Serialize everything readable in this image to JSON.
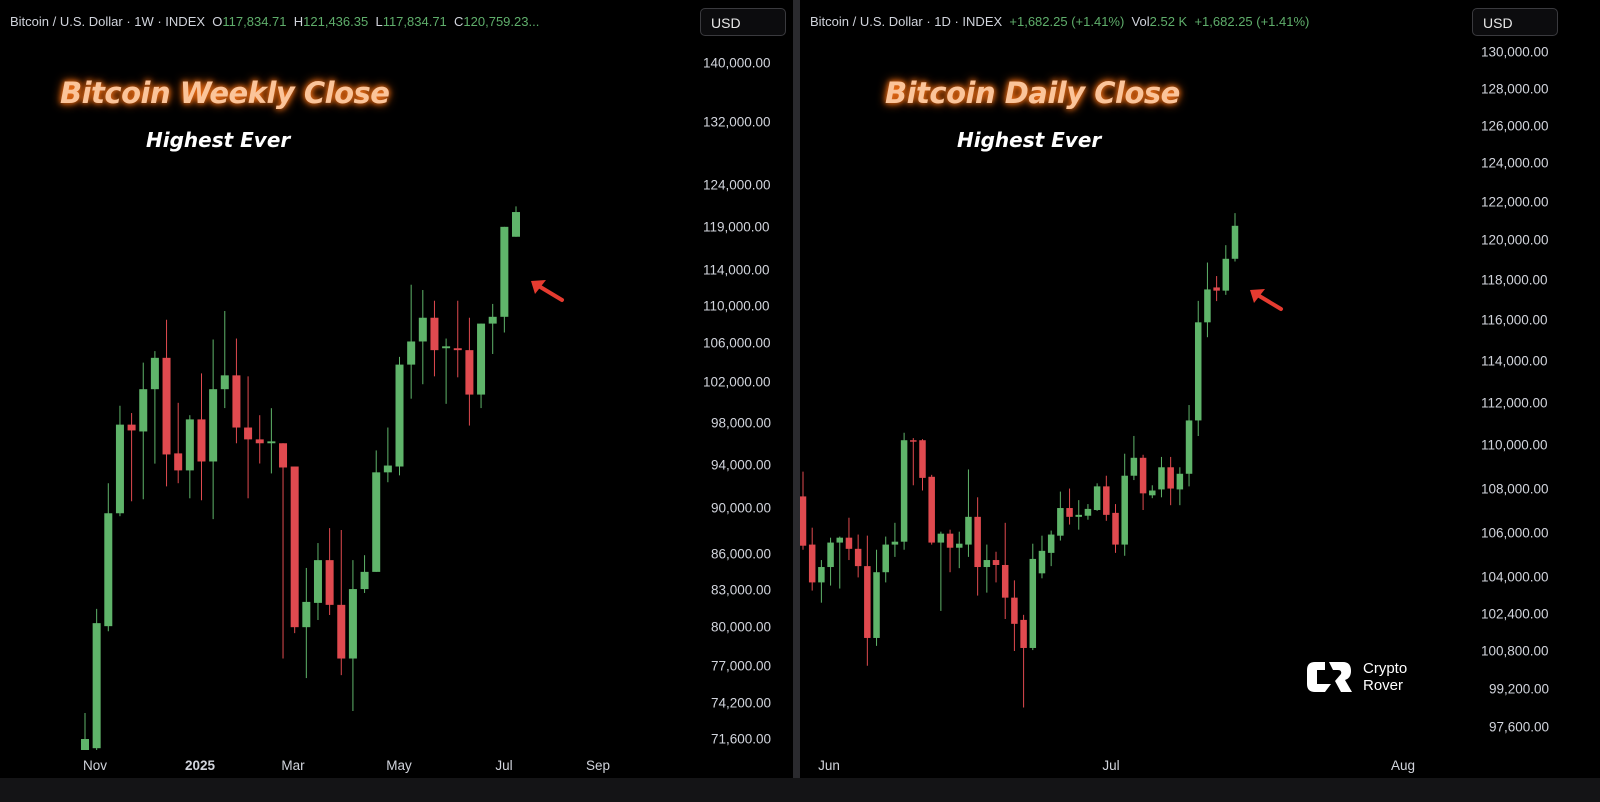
{
  "left": {
    "legend": {
      "symbol": "Bitcoin / U.S. Dollar · 1W · INDEX",
      "o_label": "O",
      "o": "117,834.71",
      "h_label": "H",
      "h": "121,436.35",
      "l_label": "L",
      "l": "117,834.71",
      "c_label": "C",
      "c": "120,759.23..."
    },
    "currency_button": "USD",
    "title": "Bitcoin Weekly Close",
    "subtitle": "Highest Ever"
  },
  "right": {
    "legend": {
      "symbol": "Bitcoin / U.S. Dollar · 1D · INDEX",
      "change": "+1,682.25 (+1.41%)",
      "vol_label": "Vol",
      "vol": "2.52 K",
      "change2": "+1,682.25 (+1.41%)"
    },
    "currency_button": "USD",
    "title": "Bitcoin Daily Close",
    "subtitle": "Highest Ever"
  },
  "logo": {
    "line1": "Crypto",
    "line2": "Rover"
  },
  "colors": {
    "up": "#5fb46a",
    "down": "#e04a4f",
    "arrow": "#e53b30",
    "title": "#fbc49a",
    "title_glow": "#ff7a1f"
  },
  "chart_data": [
    {
      "type": "candlestick",
      "interval": "1W",
      "y_scale": "log",
      "ylim": [
        71600,
        140000
      ],
      "y_ticks": [
        "140,000.00",
        "132,000.00",
        "124,000.00",
        "119,000.00",
        "114,000.00",
        "110,000.00",
        "106,000.00",
        "102,000.00",
        "98,000.00",
        "94,000.00",
        "90,000.00",
        "86,000.00",
        "83,000.00",
        "80,000.00",
        "77,000.00",
        "74,200.00",
        "71,600.00"
      ],
      "x_ticks": [
        {
          "label": "Nov",
          "bold": false
        },
        {
          "label": "2025",
          "bold": true
        },
        {
          "label": "Mar",
          "bold": false
        },
        {
          "label": "May",
          "bold": false
        },
        {
          "label": "Jul",
          "bold": false
        },
        {
          "label": "Sep",
          "bold": false
        }
      ],
      "annotation": "arrow pointing at last candle",
      "ohlc": [
        [
          70800,
          71600,
          73470,
          70500
        ],
        [
          70950,
          80320,
          81460,
          70800
        ],
        [
          80080,
          89570,
          92280,
          79680
        ],
        [
          89570,
          97800,
          99650,
          89310
        ],
        [
          97800,
          97240,
          98930,
          90640
        ],
        [
          97140,
          101300,
          104000,
          90820
        ],
        [
          101300,
          104500,
          105200,
          94090
        ],
        [
          104500,
          94950,
          108520,
          91990
        ],
        [
          95050,
          93460,
          99940,
          92280
        ],
        [
          93460,
          98310,
          98720,
          90910
        ],
        [
          98310,
          94290,
          102900,
          90730
        ],
        [
          94290,
          101300,
          106420,
          89050
        ],
        [
          101300,
          102700,
          109470,
          99420
        ],
        [
          102700,
          97520,
          106520,
          96010
        ],
        [
          97520,
          96380,
          102600,
          90910
        ],
        [
          96380,
          96010,
          98720,
          94100
        ],
        [
          96010,
          96190,
          99410,
          93180
        ],
        [
          96010,
          93730,
          96010,
          77550
        ],
        [
          93820,
          80000,
          93820,
          79530
        ],
        [
          80000,
          82030,
          84840,
          76060
        ],
        [
          81950,
          85500,
          86960,
          80570
        ],
        [
          85500,
          81790,
          88260,
          80970
        ],
        [
          81790,
          77550,
          88090,
          76280
        ],
        [
          77550,
          83080,
          85500,
          73620
        ],
        [
          83080,
          84510,
          85920,
          82760
        ],
        [
          84510,
          93280,
          95330,
          84510
        ],
        [
          93280,
          93910,
          97520,
          92370
        ],
        [
          93820,
          103800,
          104600,
          93000
        ],
        [
          103800,
          106210,
          112360,
          100350
        ],
        [
          106210,
          108740,
          111770,
          101800
        ],
        [
          108740,
          105300,
          110590,
          102600
        ],
        [
          105500,
          105700,
          106520,
          99840
        ],
        [
          105500,
          105300,
          110590,
          102500
        ],
        [
          105300,
          100760,
          108740,
          97710
        ],
        [
          100760,
          108110,
          108110,
          99420
        ],
        [
          108110,
          108840,
          110240,
          104900
        ],
        [
          108840,
          119000,
          119000,
          107160
        ],
        [
          117834.71,
          120759.23,
          121436.35,
          117834.71
        ]
      ]
    },
    {
      "type": "candlestick",
      "interval": "1D",
      "y_scale": "log",
      "ylim": [
        97600,
        130000
      ],
      "y_ticks": [
        "130,000.00",
        "128,000.00",
        "126,000.00",
        "124,000.00",
        "122,000.00",
        "120,000.00",
        "118,000.00",
        "116,000.00",
        "114,000.00",
        "112,000.00",
        "110,000.00",
        "108,000.00",
        "106,000.00",
        "104,000.00",
        "102,400.00",
        "100,800.00",
        "99,200.00",
        "97,600.00"
      ],
      "x_ticks": [
        {
          "label": "Jun",
          "bold": false
        },
        {
          "label": "Jul",
          "bold": false
        },
        {
          "label": "Aug",
          "bold": false
        }
      ],
      "annotation": "arrow pointing at last candle",
      "ohlc": [
        [
          107640,
          105410,
          108780,
          105230
        ],
        [
          105460,
          103780,
          106220,
          103420
        ],
        [
          103780,
          104460,
          104770,
          102890
        ],
        [
          104460,
          105550,
          105770,
          103640
        ],
        [
          105550,
          105770,
          105820,
          103510
        ],
        [
          105770,
          105270,
          106670,
          104770
        ],
        [
          105270,
          104500,
          105910,
          104000
        ],
        [
          104500,
          101360,
          105860,
          100170
        ],
        [
          101360,
          104230,
          105230,
          101020
        ],
        [
          104230,
          105460,
          105820,
          103780
        ],
        [
          105460,
          105590,
          106440,
          104910
        ],
        [
          105590,
          110240,
          110590,
          105230
        ],
        [
          110240,
          110200,
          110340,
          108150
        ],
        [
          110240,
          108490,
          110290,
          107910
        ],
        [
          108540,
          105550,
          108630,
          105460
        ],
        [
          105550,
          105950,
          106040,
          102530
        ],
        [
          105950,
          105320,
          106130,
          104230
        ],
        [
          105320,
          105500,
          106040,
          104410
        ],
        [
          105460,
          106710,
          108880,
          104910
        ],
        [
          106710,
          104460,
          107600,
          103200
        ],
        [
          104460,
          104770,
          105460,
          103330
        ],
        [
          104770,
          104550,
          105140,
          103780
        ],
        [
          104550,
          103110,
          106440,
          102180
        ],
        [
          103110,
          101970,
          103870,
          100800
        ],
        [
          102140,
          100930,
          102360,
          98410
        ],
        [
          100930,
          104820,
          105500,
          100840
        ],
        [
          104180,
          105180,
          105860,
          103960
        ],
        [
          105090,
          105910,
          106090,
          104500
        ],
        [
          105860,
          107110,
          107860,
          105640
        ],
        [
          107110,
          106710,
          108000,
          106360
        ],
        [
          106710,
          106800,
          107470,
          106130
        ],
        [
          106760,
          107070,
          107290,
          106580
        ],
        [
          107020,
          108100,
          108240,
          106980
        ],
        [
          108100,
          106800,
          108590,
          106530
        ],
        [
          106890,
          105460,
          107290,
          105090
        ],
        [
          105460,
          108590,
          109610,
          104960
        ],
        [
          108590,
          109420,
          110440,
          108390
        ],
        [
          109420,
          107780,
          109560,
          107020
        ],
        [
          107690,
          107910,
          108150,
          107560
        ],
        [
          107960,
          108980,
          109460,
          107600
        ],
        [
          108980,
          108000,
          109460,
          107240
        ],
        [
          107960,
          108680,
          108980,
          107240
        ],
        [
          108680,
          111170,
          111900,
          108100
        ],
        [
          111170,
          115900,
          116960,
          110440
        ],
        [
          115900,
          117530,
          118880,
          115170
        ],
        [
          117630,
          117470,
          118200,
          116950
        ],
        [
          117470,
          119070,
          119760,
          117260
        ],
        [
          119070,
          120750,
          121400,
          118930
        ]
      ]
    }
  ]
}
